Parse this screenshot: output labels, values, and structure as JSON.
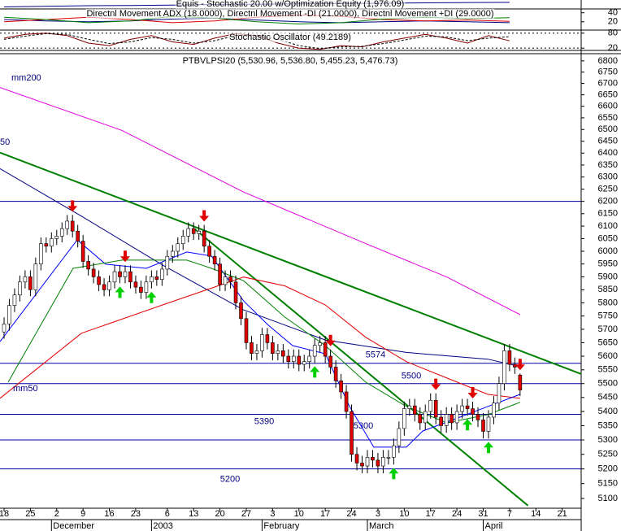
{
  "chart_data": [
    {
      "type": "line",
      "title": "Equis - Stochastic 20.00  w/Optimization Equity (1,976.09)",
      "xlim": [
        -0.77,
        109.6
      ],
      "ylim": [
        1500,
        2100
      ],
      "series": [
        {
          "color": "#000080",
          "x": [
            0,
            8,
            16,
            24,
            32,
            40,
            48,
            56,
            64,
            72,
            80,
            88,
            96
          ],
          "values": [
            1600,
            1650,
            1700,
            1720,
            1750,
            1800,
            1820,
            1850,
            1880,
            1900,
            1930,
            1960,
            1976.09
          ]
        }
      ]
    },
    {
      "type": "line",
      "title": "Directnl Movement ADX (18.0000), Directnl Movement -DI (21.0000), Directnl Movement +DI (29.0000)",
      "xlim": [
        -0.77,
        109.6
      ],
      "ylim": [
        3.3,
        46.7
      ],
      "yticks": [
        40,
        20
      ],
      "series": [
        {
          "color": "#000080",
          "x": [
            0,
            8,
            16,
            24,
            32,
            40,
            48,
            56,
            64,
            72,
            80,
            88,
            96
          ],
          "values": [
            25,
            22,
            20,
            22,
            26,
            28,
            24,
            20,
            18,
            20,
            22,
            20,
            18
          ]
        },
        {
          "color": "#e00000",
          "x": [
            0,
            8,
            16,
            24,
            32,
            40,
            48,
            56,
            64,
            72,
            80,
            88,
            96
          ],
          "values": [
            20,
            25,
            30,
            25,
            18,
            22,
            30,
            35,
            32,
            25,
            22,
            24,
            21
          ]
        },
        {
          "color": "#008000",
          "x": [
            0,
            8,
            16,
            24,
            32,
            40,
            48,
            56,
            64,
            72,
            80,
            88,
            96
          ],
          "values": [
            30,
            25,
            18,
            22,
            32,
            28,
            20,
            15,
            18,
            26,
            30,
            27,
            29
          ]
        }
      ]
    },
    {
      "type": "line",
      "title": "Stochastic Oscillator (49.2189)",
      "xlim": [
        -0.77,
        109.6
      ],
      "ylim": [
        14,
        89
      ],
      "yticks": [
        80,
        20
      ],
      "grid": true,
      "series": [
        {
          "color": "#800000",
          "x": [
            0,
            4,
            8,
            12,
            16,
            20,
            24,
            28,
            32,
            36,
            40,
            44,
            48,
            52,
            56,
            60,
            64,
            68,
            72,
            76,
            80,
            84,
            88,
            92,
            96
          ],
          "values": [
            60,
            75,
            80,
            70,
            40,
            30,
            55,
            70,
            45,
            35,
            60,
            78,
            70,
            40,
            20,
            15,
            30,
            25,
            45,
            60,
            75,
            60,
            40,
            70,
            49.2
          ]
        },
        {
          "color": "#000000",
          "dash": true,
          "x": [
            0,
            4,
            8,
            12,
            16,
            20,
            24,
            28,
            32,
            36,
            40,
            44,
            48,
            52,
            56,
            60,
            64,
            68,
            72,
            76,
            80,
            84,
            88,
            92,
            96
          ],
          "values": [
            55,
            68,
            78,
            75,
            55,
            38,
            45,
            62,
            55,
            40,
            50,
            70,
            72,
            55,
            30,
            18,
            25,
            27,
            38,
            52,
            68,
            65,
            50,
            60,
            66
          ]
        }
      ]
    },
    {
      "type": "candlestick",
      "title": "PTBVLPSI20 (5,530.96, 5,536.80, 5,455.23, 5,476.73)",
      "log_scale": true,
      "xlim": [
        -0.77,
        109.6
      ],
      "ylim": [
        5070,
        6825
      ],
      "yticks": [
        6800,
        6750,
        6700,
        6650,
        6600,
        6550,
        6500,
        6450,
        6400,
        6350,
        6300,
        6250,
        6200,
        6150,
        6100,
        6050,
        6000,
        5950,
        5900,
        5850,
        5800,
        5750,
        5700,
        5650,
        5600,
        5550,
        5500,
        5450,
        5400,
        5350,
        5300,
        5250,
        5200,
        5150,
        5100
      ],
      "xticks": [
        {
          "value": 0,
          "label": "18"
        },
        {
          "value": 5,
          "label": "25"
        },
        {
          "value": 10,
          "label": "2"
        },
        {
          "value": 15,
          "label": "9"
        },
        {
          "value": 20,
          "label": "16"
        },
        {
          "value": 25,
          "label": "23"
        },
        {
          "value": 31,
          "label": "6"
        },
        {
          "value": 36,
          "label": "13"
        },
        {
          "value": 41,
          "label": "20"
        },
        {
          "value": 46,
          "label": "27"
        },
        {
          "value": 51,
          "label": "3"
        },
        {
          "value": 56,
          "label": "10"
        },
        {
          "value": 61,
          "label": "17"
        },
        {
          "value": 66,
          "label": "24"
        },
        {
          "value": 71,
          "label": "3"
        },
        {
          "value": 76,
          "label": "10"
        },
        {
          "value": 81,
          "label": "17"
        },
        {
          "value": 86,
          "label": "24"
        },
        {
          "value": 91,
          "label": "31"
        },
        {
          "value": 96,
          "label": "7"
        },
        {
          "value": 101,
          "label": "14"
        },
        {
          "value": 106,
          "label": "21"
        }
      ],
      "month_labels": [
        {
          "value": 9,
          "label": "December"
        },
        {
          "value": 28,
          "label": "2003"
        },
        {
          "value": 49,
          "label": "February"
        },
        {
          "value": 69,
          "label": "March"
        },
        {
          "value": 91,
          "label": "April"
        }
      ],
      "up_color": "#ffffff",
      "down_color": "#e00000",
      "candles": {
        "x": [
          0,
          1,
          2,
          3,
          4,
          5,
          6,
          7,
          8,
          9,
          10,
          11,
          12,
          13,
          14,
          15,
          16,
          17,
          18,
          19,
          20,
          21,
          22,
          23,
          24,
          25,
          26,
          27,
          28,
          29,
          30,
          31,
          32,
          33,
          34,
          35,
          36,
          37,
          38,
          39,
          40,
          41,
          42,
          43,
          44,
          45,
          46,
          47,
          48,
          49,
          50,
          51,
          52,
          53,
          54,
          55,
          56,
          57,
          58,
          59,
          60,
          61,
          62,
          63,
          64,
          65,
          66,
          67,
          68,
          69,
          70,
          71,
          72,
          73,
          74,
          75,
          76,
          77,
          78,
          79,
          80,
          81,
          82,
          83,
          84,
          85,
          86,
          87,
          88,
          89,
          90,
          91,
          92,
          93,
          94,
          95,
          96,
          97,
          98
        ],
        "open": [
          5690,
          5720,
          5790,
          5830,
          5880,
          5900,
          5850,
          5950,
          6030,
          6020,
          6050,
          6060,
          6090,
          6120,
          6080,
          6040,
          5960,
          5930,
          5900,
          5870,
          5850,
          5880,
          5920,
          5900,
          5920,
          5880,
          5860,
          5840,
          5880,
          5900,
          5890,
          5930,
          5980,
          6000,
          6030,
          6060,
          6090,
          6070,
          6080,
          6020,
          5980,
          5950,
          5870,
          5900,
          5880,
          5800,
          5740,
          5650,
          5610,
          5620,
          5680,
          5650,
          5610,
          5620,
          5600,
          5580,
          5600,
          5570,
          5580,
          5600,
          5640,
          5650,
          5600,
          5560,
          5510,
          5470,
          5400,
          5250,
          5220,
          5210,
          5240,
          5230,
          5210,
          5240,
          5240,
          5280,
          5340,
          5410,
          5420,
          5390,
          5360,
          5400,
          5440,
          5380,
          5350,
          5390,
          5360,
          5400,
          5420,
          5410,
          5390,
          5370,
          5330,
          5380,
          5430,
          5500,
          5620,
          5570,
          5530.96
        ],
        "high": [
          5745,
          5815,
          5855,
          5905,
          5925,
          5925,
          5975,
          6055,
          6055,
          6075,
          6085,
          6115,
          6145,
          6145,
          6105,
          6065,
          5985,
          5955,
          5925,
          5895,
          5905,
          5945,
          5945,
          5945,
          5945,
          5905,
          5885,
          5905,
          5925,
          5925,
          5955,
          6005,
          6025,
          6055,
          6085,
          6115,
          6115,
          6105,
          6105,
          6045,
          6005,
          5975,
          5925,
          5925,
          5905,
          5825,
          5765,
          5675,
          5645,
          5705,
          5705,
          5675,
          5645,
          5645,
          5625,
          5625,
          5625,
          5605,
          5625,
          5665,
          5675,
          5675,
          5625,
          5585,
          5535,
          5495,
          5425,
          5275,
          5245,
          5265,
          5265,
          5255,
          5265,
          5265,
          5305,
          5365,
          5435,
          5445,
          5445,
          5415,
          5425,
          5465,
          5465,
          5405,
          5415,
          5415,
          5425,
          5445,
          5445,
          5435,
          5415,
          5395,
          5405,
          5455,
          5525,
          5645,
          5645,
          5595,
          5536.8
        ],
        "low": [
          5665,
          5695,
          5765,
          5805,
          5855,
          5825,
          5825,
          5925,
          5995,
          5995,
          6025,
          6035,
          6065,
          6055,
          6015,
          5935,
          5905,
          5875,
          5845,
          5825,
          5825,
          5855,
          5875,
          5875,
          5855,
          5835,
          5815,
          5815,
          5855,
          5865,
          5865,
          5905,
          5955,
          5975,
          6005,
          6035,
          6045,
          6045,
          5995,
          5955,
          5925,
          5845,
          5845,
          5855,
          5775,
          5715,
          5625,
          5585,
          5585,
          5595,
          5625,
          5585,
          5585,
          5575,
          5555,
          5555,
          5545,
          5545,
          5555,
          5575,
          5615,
          5575,
          5535,
          5485,
          5445,
          5375,
          5225,
          5195,
          5185,
          5185,
          5205,
          5185,
          5185,
          5215,
          5215,
          5255,
          5315,
          5385,
          5365,
          5335,
          5335,
          5375,
          5355,
          5325,
          5325,
          5335,
          5335,
          5375,
          5385,
          5365,
          5345,
          5305,
          5305,
          5355,
          5405,
          5475,
          5545,
          5535,
          5455.23
        ],
        "close": [
          5720,
          5790,
          5830,
          5880,
          5900,
          5850,
          5950,
          6030,
          6020,
          6050,
          6060,
          6090,
          6120,
          6080,
          6040,
          5960,
          5930,
          5900,
          5870,
          5850,
          5880,
          5920,
          5900,
          5920,
          5880,
          5860,
          5840,
          5880,
          5900,
          5890,
          5930,
          5980,
          6000,
          6030,
          6060,
          6090,
          6070,
          6080,
          6020,
          5980,
          5950,
          5870,
          5900,
          5880,
          5800,
          5740,
          5650,
          5610,
          5620,
          5680,
          5650,
          5610,
          5620,
          5600,
          5580,
          5600,
          5570,
          5580,
          5600,
          5640,
          5650,
          5600,
          5560,
          5510,
          5470,
          5400,
          5250,
          5220,
          5210,
          5240,
          5230,
          5210,
          5240,
          5240,
          5280,
          5340,
          5410,
          5420,
          5390,
          5360,
          5400,
          5440,
          5380,
          5350,
          5390,
          5360,
          5400,
          5420,
          5410,
          5390,
          5370,
          5330,
          5380,
          5430,
          5500,
          5620,
          5570,
          5560,
          5476.73
        ]
      },
      "series": [
        {
          "name": "mm200",
          "color": "#e000e0",
          "x": [
            -0.77,
            22.4,
            45.5,
            68.7,
            84.1,
            98.0
          ],
          "values": [
            6682,
            6496,
            6238,
            6030,
            5899,
            5755
          ]
        },
        {
          "name": "mm50",
          "color": "#000080",
          "x": [
            -0.77,
            14.7,
            30.1,
            45.5,
            61.0,
            76.4,
            91.9,
            98.0
          ],
          "values": [
            6335,
            6140,
            5946,
            5773,
            5660,
            5614,
            5589,
            5562
          ]
        },
        {
          "color": "#e00000",
          "x": [
            -0.77,
            14.7,
            30.1,
            45.5,
            53.3,
            61.0,
            68.7,
            76.4,
            84.1,
            91.9,
            98.0
          ],
          "values": [
            5447,
            5685,
            5792,
            5899,
            5865,
            5792,
            5670,
            5580,
            5520,
            5461,
            5447
          ]
        },
        {
          "color": "#0000ff",
          "x": [
            -0.77,
            13.9,
            19.3,
            27.0,
            34.7,
            39.4,
            45.5,
            50.2,
            54.8,
            61.0,
            65.6,
            70.2,
            76.4,
            79.5,
            85.7,
            91.9,
            98.0
          ],
          "values": [
            5654,
            6045,
            5949,
            5933,
            5997,
            5981,
            5807,
            5715,
            5639,
            5609,
            5418,
            5275,
            5275,
            5331,
            5374,
            5418,
            5461
          ]
        },
        {
          "color": "#008000",
          "x": [
            0.77,
            13.1,
            22.4,
            34.7,
            39.4,
            45.5,
            53.3,
            61.0,
            68.7,
            76.4,
            84.1,
            91.9,
            98.0
          ],
          "values": [
            5505,
            5933,
            5965,
            5965,
            5933,
            5885,
            5746,
            5639,
            5505,
            5418,
            5360,
            5389,
            5433
          ]
        }
      ],
      "trendlines": [
        {
          "color": "#008000",
          "x": [
            -0.77,
            109.6
          ],
          "values": [
            6402,
            5535
          ]
        },
        {
          "color": "#008000",
          "x": [
            36.3,
            99.5
          ],
          "values": [
            6087,
            5076
          ]
        }
      ],
      "levels": [
        6200,
        5574,
        5500,
        5390,
        5300,
        5200
      ],
      "level_color": "#0000a0",
      "level_labels": [
        5574,
        5500,
        5390,
        5300,
        5200
      ],
      "annotations": [
        "mm200",
        "mm50",
        "50"
      ],
      "sell_signals": [
        13,
        23,
        38,
        62,
        82,
        89,
        98
      ],
      "buy_signals": [
        22,
        28,
        59,
        74,
        88,
        92
      ]
    }
  ]
}
